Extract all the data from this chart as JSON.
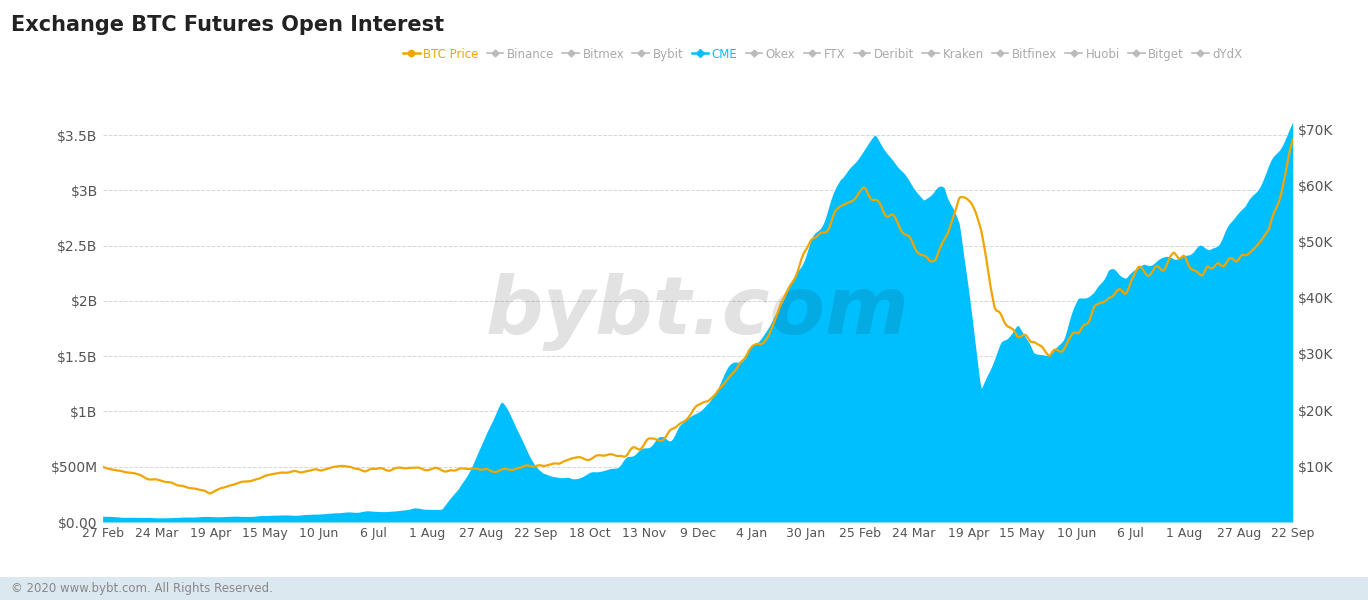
{
  "title": "Exchange BTC Futures Open Interest",
  "bg_color": "#ffffff",
  "chart_bg": "#ffffff",
  "area_color": "#00bfff",
  "line_color": "#f0a500",
  "watermark": "bybt.com",
  "watermark_color": "#222222",
  "watermark_alpha": 0.13,
  "footer": "© 2020 www.bybt.com. All Rights Reserved.",
  "left_yticks": [
    "$0.00",
    "$500M",
    "$1B",
    "$1.5B",
    "$2B",
    "$2.5B",
    "$3B",
    "$3.5B"
  ],
  "left_yvals": [
    0,
    500000000,
    1000000000,
    1500000000,
    2000000000,
    2500000000,
    3000000000,
    3500000000
  ],
  "right_yticks": [
    "$10K",
    "$20K",
    "$30K",
    "$40K",
    "$50K",
    "$60K",
    "$70K"
  ],
  "right_yvals": [
    10000,
    20000,
    30000,
    40000,
    50000,
    60000,
    70000
  ],
  "xtick_labels": [
    "27 Feb",
    "24 Mar",
    "19 Apr",
    "15 May",
    "10 Jun",
    "6 Jul",
    "1 Aug",
    "27 Aug",
    "22 Sep",
    "18 Oct",
    "13 Nov",
    "9 Dec",
    "4 Jan",
    "30 Jan",
    "25 Feb",
    "24 Mar",
    "19 Apr",
    "15 May",
    "10 Jun",
    "6 Jul",
    "1 Aug",
    "27 Aug",
    "22 Sep"
  ],
  "legend_items": [
    {
      "label": "BTC Price",
      "color": "#f0a500"
    },
    {
      "label": "Binance",
      "color": "#bbbbbb"
    },
    {
      "label": "Bitmex",
      "color": "#bbbbbb"
    },
    {
      "label": "Bybit",
      "color": "#bbbbbb"
    },
    {
      "label": "CME",
      "color": "#00bfff"
    },
    {
      "label": "Okex",
      "color": "#bbbbbb"
    },
    {
      "label": "FTX",
      "color": "#bbbbbb"
    },
    {
      "label": "Deribit",
      "color": "#bbbbbb"
    },
    {
      "label": "Kraken",
      "color": "#bbbbbb"
    },
    {
      "label": "Bitfinex",
      "color": "#bbbbbb"
    },
    {
      "label": "Huobi",
      "color": "#bbbbbb"
    },
    {
      "label": "Bitget",
      "color": "#bbbbbb"
    },
    {
      "label": "dYdX",
      "color": "#bbbbbb"
    }
  ]
}
